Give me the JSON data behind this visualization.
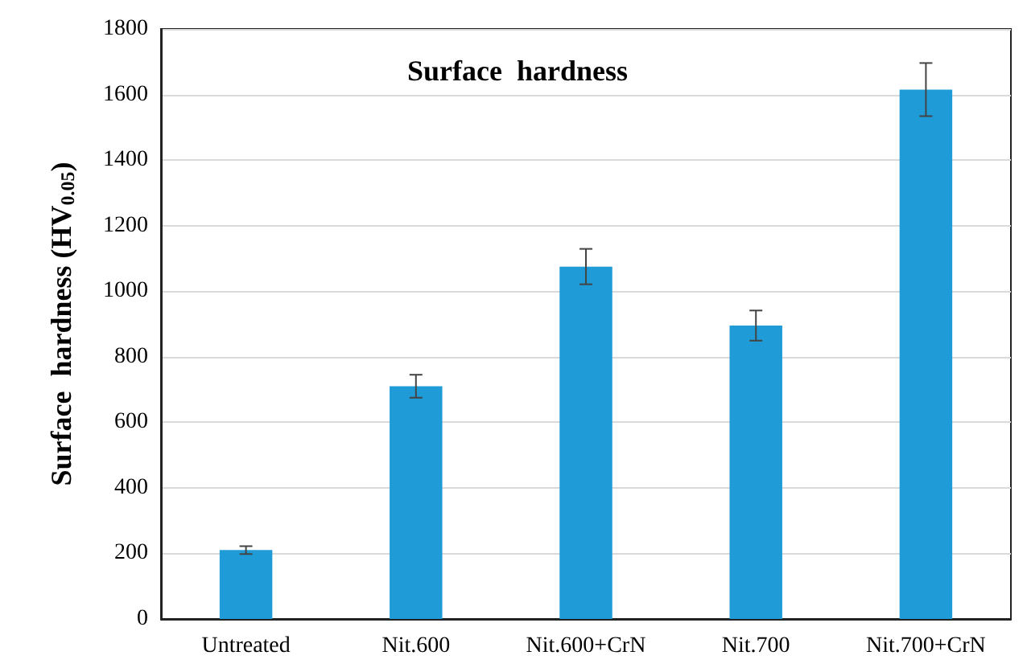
{
  "chart_data": {
    "type": "bar",
    "title": "Surface  hardness",
    "ylabel": "Surface  hardness (HV$_{0.05}$)",
    "categories": [
      "Untreated",
      "Nit.600",
      "Nit.600+CrN",
      "Nit.700",
      "Nit.700+CrN"
    ],
    "values": [
      210,
      710,
      1075,
      895,
      1615
    ],
    "errors": [
      12,
      35,
      54,
      46,
      81
    ],
    "color": "#1f9bd7",
    "ylim": [
      0,
      1800
    ],
    "yticks": [
      0,
      200,
      400,
      600,
      800,
      1000,
      1200,
      1400,
      1600,
      1800
    ],
    "grid": "y"
  }
}
